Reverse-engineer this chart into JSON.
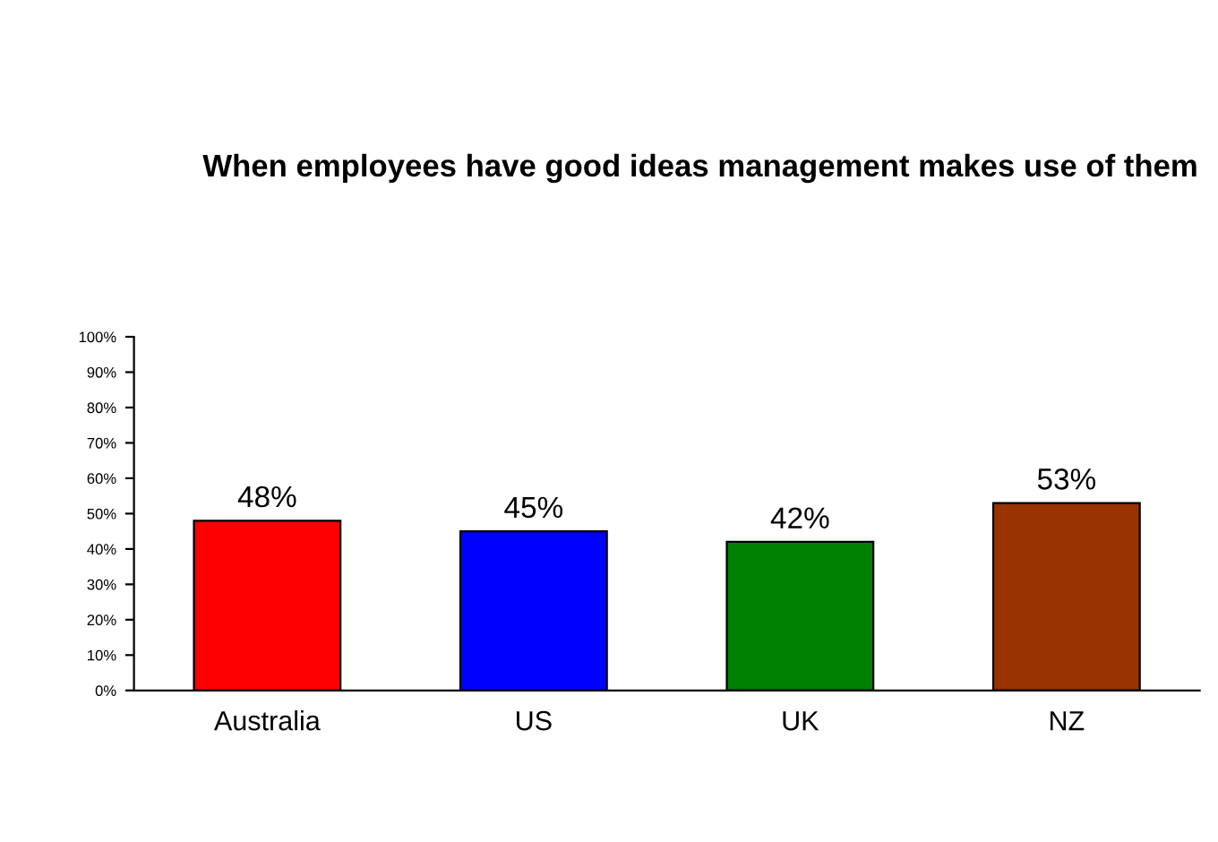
{
  "chart_data": {
    "type": "bar",
    "title": "When employees have good ideas management makes use of them",
    "categories": [
      "Australia",
      "US",
      "UK",
      "NZ"
    ],
    "values": [
      48,
      45,
      42,
      53
    ],
    "colors": [
      "#ff0000",
      "#0000ff",
      "#008000",
      "#993300"
    ],
    "value_labels": [
      "48%",
      "45%",
      "42%",
      "53%"
    ],
    "ylim": [
      0,
      100
    ],
    "yticks": [
      {
        "value": 0,
        "label": "0%"
      },
      {
        "value": 10,
        "label": "10%"
      },
      {
        "value": 20,
        "label": "20%"
      },
      {
        "value": 30,
        "label": "30%"
      },
      {
        "value": 40,
        "label": "40%"
      },
      {
        "value": 50,
        "label": "50%"
      },
      {
        "value": 60,
        "label": "60%"
      },
      {
        "value": 70,
        "label": "70%"
      },
      {
        "value": 80,
        "label": "80%"
      },
      {
        "value": 90,
        "label": "90%"
      },
      {
        "value": 100,
        "label": "100%"
      }
    ],
    "grid": false,
    "legend": false
  }
}
